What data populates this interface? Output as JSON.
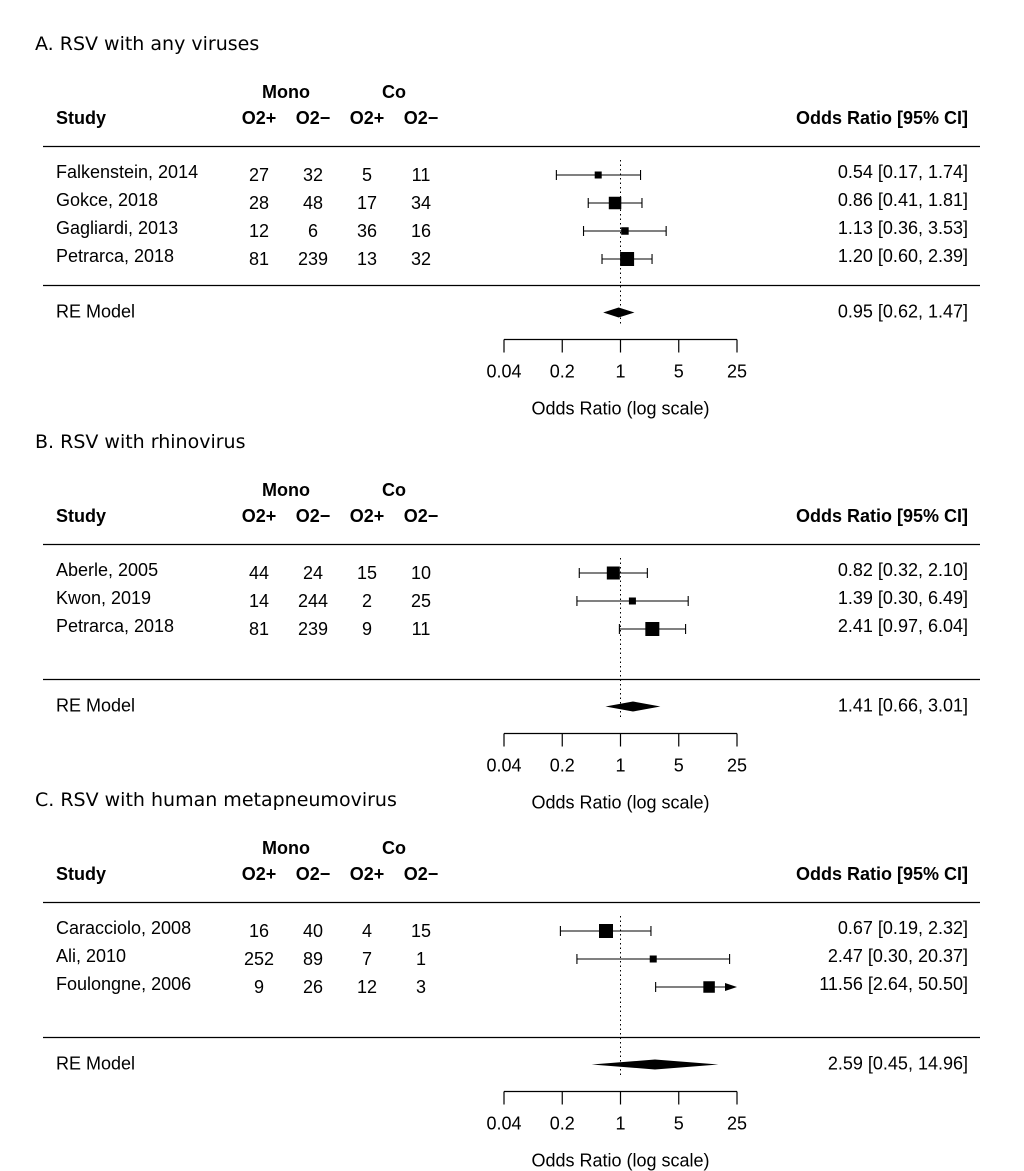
{
  "chart_data": [
    {
      "type": "forest",
      "title": "A. RSV with any viruses",
      "group_labels": [
        "Mono",
        "Co"
      ],
      "columns": [
        "Study",
        "O2+",
        "O2−",
        "O2+",
        "O2−",
        "Odds Ratio [95% CI]"
      ],
      "studies": [
        {
          "study": "Falkenstein, 2014",
          "counts": [
            "27",
            "32",
            "5",
            "11"
          ],
          "or": 0.54,
          "lo": 0.17,
          "hi": 1.74,
          "ci_text": "0.54 [0.17, 1.74]",
          "weight": 0.3
        },
        {
          "study": "Gokce, 2018",
          "counts": [
            "28",
            "48",
            "17",
            "34"
          ],
          "or": 0.86,
          "lo": 0.41,
          "hi": 1.81,
          "ci_text": "0.86 [0.41, 1.81]",
          "weight": 0.85
        },
        {
          "study": "Gagliardi, 2013",
          "counts": [
            "12",
            "6",
            "36",
            "16"
          ],
          "or": 1.13,
          "lo": 0.36,
          "hi": 3.53,
          "ci_text": "1.13 [0.36, 3.53]",
          "weight": 0.35
        },
        {
          "study": "Petrarca, 2018",
          "counts": [
            "81",
            "239",
            "13",
            "32"
          ],
          "or": 1.2,
          "lo": 0.6,
          "hi": 2.39,
          "ci_text": "1.20 [0.60, 2.39]",
          "weight": 1.0
        }
      ],
      "summary": {
        "label": "RE Model",
        "or": 0.95,
        "lo": 0.62,
        "hi": 1.47,
        "ci_text": "0.95 [0.62, 1.47]"
      },
      "xticks": [
        0.04,
        0.2,
        1,
        5,
        25
      ],
      "xtick_labels": [
        "0.04",
        "0.2",
        "1",
        "5",
        "25"
      ],
      "xlabel": "Odds Ratio (log scale)",
      "log_scale": true
    },
    {
      "type": "forest",
      "title": "B. RSV with rhinovirus",
      "group_labels": [
        "Mono",
        "Co"
      ],
      "columns": [
        "Study",
        "O2+",
        "O2−",
        "O2+",
        "O2−",
        "Odds Ratio [95% CI]"
      ],
      "studies": [
        {
          "study": "Aberle, 2005",
          "counts": [
            "44",
            "24",
            "15",
            "10"
          ],
          "or": 0.82,
          "lo": 0.32,
          "hi": 2.1,
          "ci_text": "0.82 [0.32, 2.10]",
          "weight": 0.9
        },
        {
          "study": "Kwon, 2019",
          "counts": [
            "14",
            "244",
            "2",
            "25"
          ],
          "or": 1.39,
          "lo": 0.3,
          "hi": 6.49,
          "ci_text": "1.39 [0.30, 6.49]",
          "weight": 0.3
        },
        {
          "study": "Petrarca, 2018",
          "counts": [
            "81",
            "239",
            "9",
            "11"
          ],
          "or": 2.41,
          "lo": 0.97,
          "hi": 6.04,
          "ci_text": "2.41 [0.97, 6.04]",
          "weight": 1.0
        }
      ],
      "summary": {
        "label": "RE Model",
        "or": 1.41,
        "lo": 0.66,
        "hi": 3.01,
        "ci_text": "1.41 [0.66, 3.01]"
      },
      "xticks": [
        0.04,
        0.2,
        1,
        5,
        25
      ],
      "xtick_labels": [
        "0.04",
        "0.2",
        "1",
        "5",
        "25"
      ],
      "xlabel": "Odds Ratio (log scale)",
      "log_scale": true
    },
    {
      "type": "forest",
      "title": "C. RSV with human metapneumovirus",
      "group_labels": [
        "Mono",
        "Co"
      ],
      "columns": [
        "Study",
        "O2+",
        "O2−",
        "O2+",
        "O2−",
        "Odds Ratio [95% CI]"
      ],
      "studies": [
        {
          "study": "Caracciolo, 2008",
          "counts": [
            "16",
            "40",
            "4",
            "15"
          ],
          "or": 0.67,
          "lo": 0.19,
          "hi": 2.32,
          "ci_text": "0.67 [0.19,  2.32]",
          "weight": 1.0
        },
        {
          "study": "Ali, 2010",
          "counts": [
            "252",
            "89",
            "7",
            "1"
          ],
          "or": 2.47,
          "lo": 0.3,
          "hi": 20.37,
          "ci_text": "2.47 [0.30, 20.37]",
          "weight": 0.3
        },
        {
          "study": "Foulongne, 2006",
          "counts": [
            "9",
            "26",
            "12",
            "3"
          ],
          "or": 11.56,
          "lo": 2.64,
          "hi": 50.5,
          "ci_text": "11.56 [2.64, 50.50]",
          "weight": 0.75,
          "arrow_right": true
        }
      ],
      "summary": {
        "label": "RE Model",
        "or": 2.59,
        "lo": 0.45,
        "hi": 14.96,
        "ci_text": "2.59 [0.45, 14.96]"
      },
      "xticks": [
        0.04,
        0.2,
        1,
        5,
        25
      ],
      "xtick_labels": [
        "0.04",
        "0.2",
        "1",
        "5",
        "25"
      ],
      "xlabel": "Odds Ratio (log scale)",
      "log_scale": true
    }
  ]
}
